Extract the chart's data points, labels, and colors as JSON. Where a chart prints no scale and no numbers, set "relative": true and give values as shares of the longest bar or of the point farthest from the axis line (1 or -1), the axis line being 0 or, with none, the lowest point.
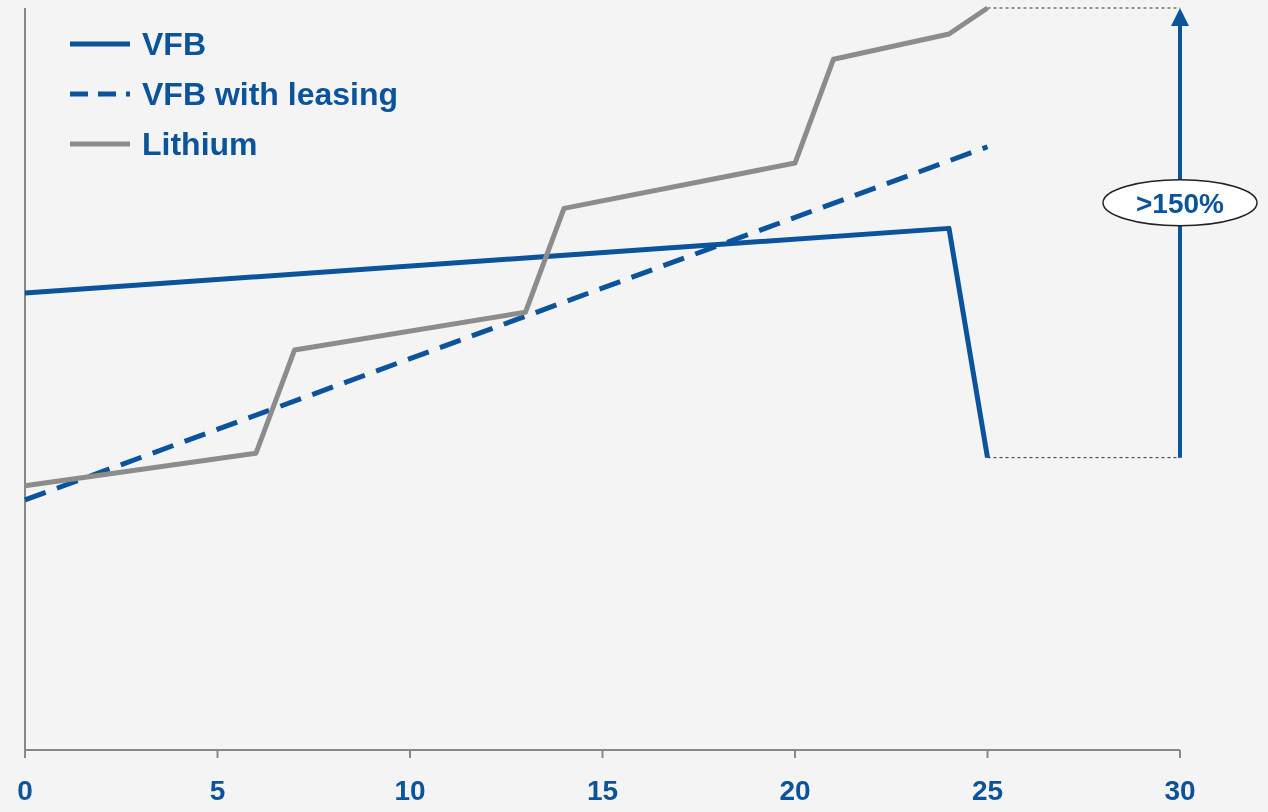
{
  "chart_data": {
    "type": "line",
    "relative": true,
    "xlim": [
      0,
      30
    ],
    "xticks": [
      0,
      5,
      10,
      15,
      20,
      25,
      30
    ],
    "legend": "top left",
    "grid": false,
    "series": [
      {
        "name": "VFB",
        "color": "#0b539b",
        "line_style": "solid",
        "x": [
          0,
          24,
          25
        ],
        "values": [
          0.616,
          0.703,
          0.394
        ]
      },
      {
        "name": "VFB with leasing",
        "color": "#0b539b",
        "line_style": "dashed",
        "x": [
          0,
          25
        ],
        "values": [
          0.337,
          0.813
        ]
      },
      {
        "name": "Lithium",
        "color": "#8c8c8c",
        "line_style": "solid",
        "x": [
          0,
          6,
          7,
          13,
          14,
          20,
          21,
          24,
          25
        ],
        "values": [
          0.356,
          0.4,
          0.539,
          0.59,
          0.73,
          0.791,
          0.931,
          0.965,
          1.0
        ]
      }
    ],
    "annotations": [
      ">150%"
    ]
  }
}
